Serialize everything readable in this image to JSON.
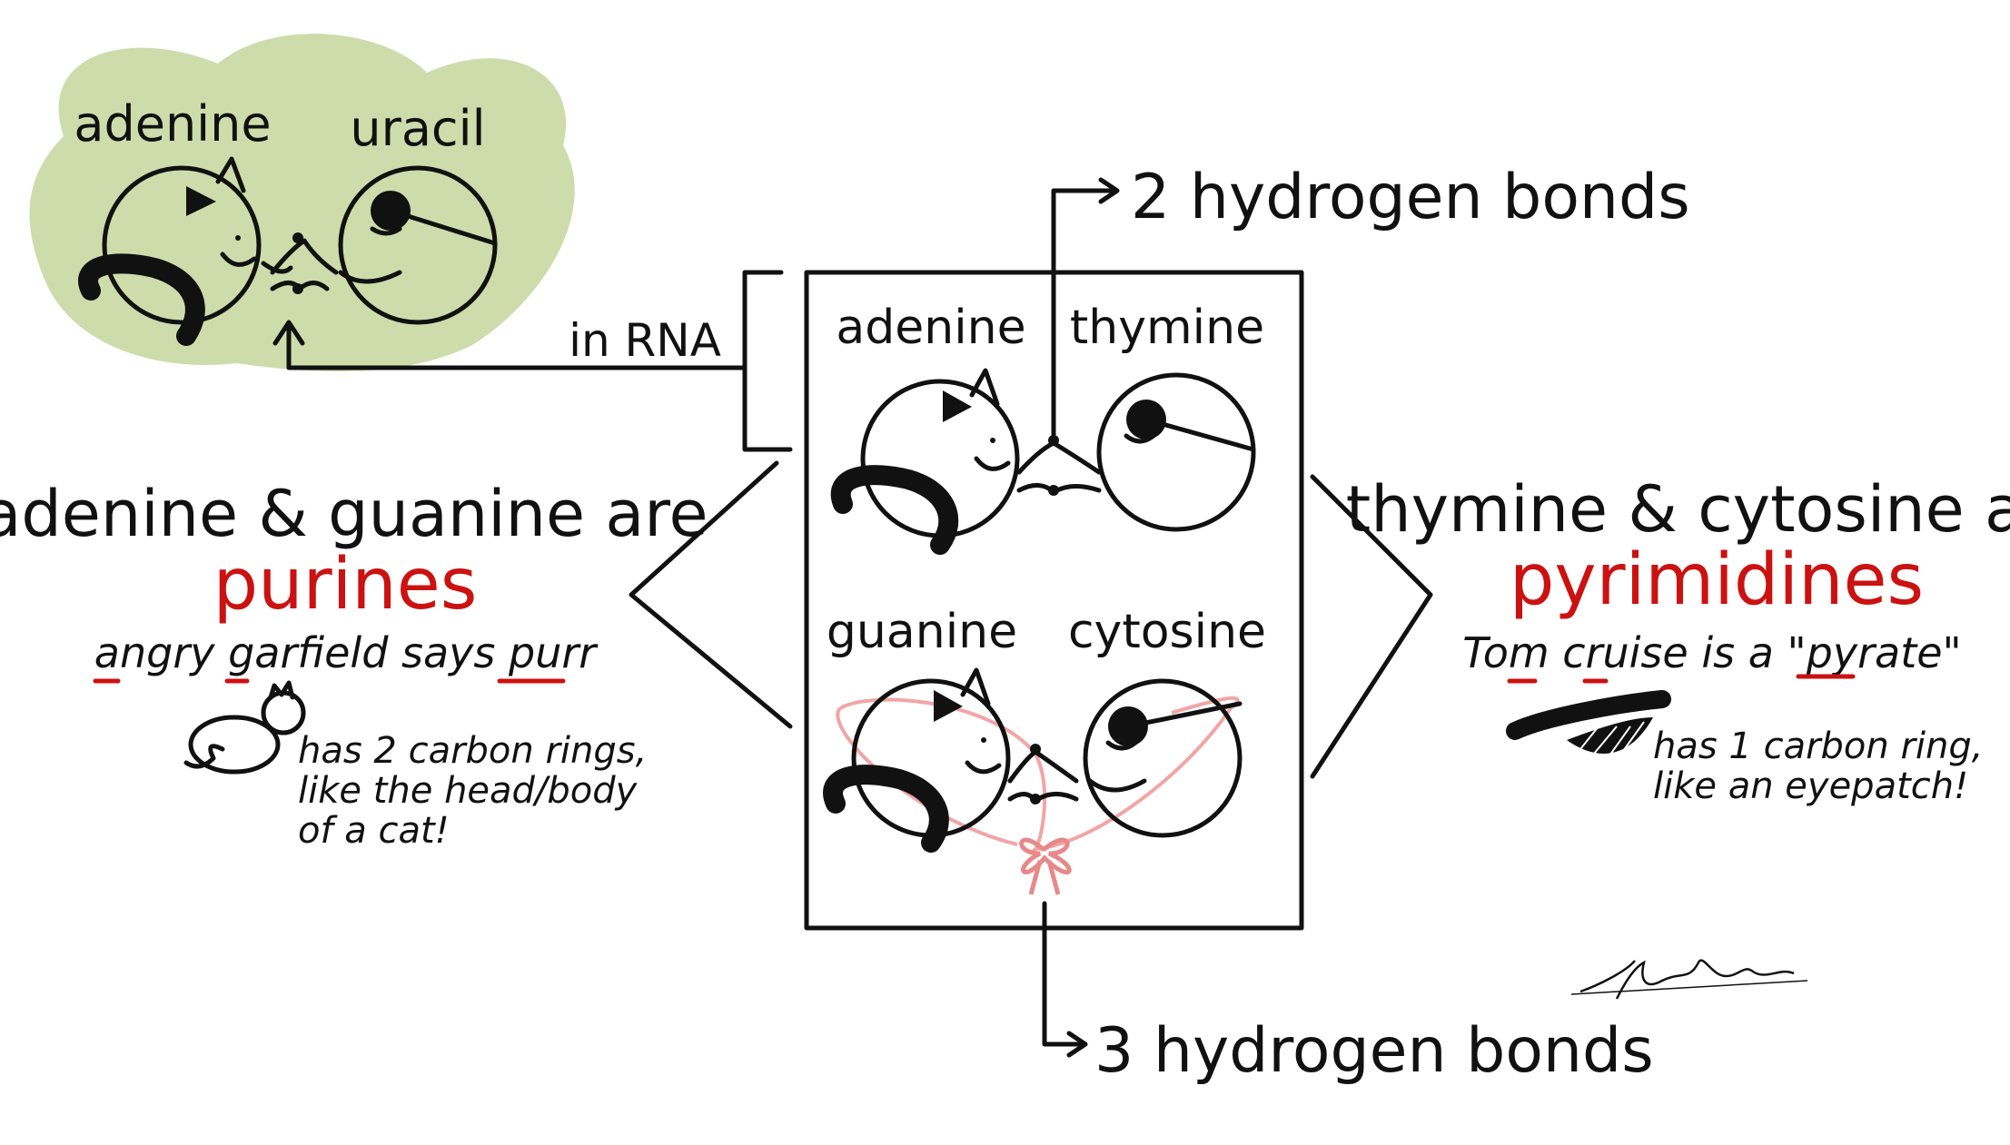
{
  "colors": {
    "ink": "#111111",
    "accent_red": "#cc1111",
    "rna_background": "#cddcaa",
    "ribbon_pink": "#f2a5a5",
    "bow_pink": "#e88888"
  },
  "rna_panel": {
    "base_left": "adenine",
    "base_right": "uracil",
    "connector_label": "in RNA"
  },
  "dna_box": {
    "top_left": "adenine",
    "top_right": "thymine",
    "bottom_left": "guanine",
    "bottom_right": "cytosine",
    "top_bond_label": "2 hydrogen bonds",
    "bottom_bond_label": "3 hydrogen bonds"
  },
  "purines": {
    "heading": "adenine & guanine are",
    "term": "purines",
    "mnemonic_parts": [
      "angry",
      " garfield",
      " says",
      " purr"
    ],
    "note_lines": [
      "has 2 carbon rings,",
      "like the head/body",
      "of a cat!"
    ]
  },
  "pyrimidines": {
    "heading": "thymine & cytosine are",
    "term": "pyrimidines",
    "mnemonic_parts": [
      "Tom",
      " cruise",
      " is a ",
      "\"pyrate\""
    ],
    "note_lines": [
      "has 1 carbon ring,",
      "like an eyepatch!"
    ]
  },
  "icons": [
    "cat-icon",
    "eyepatch-icon",
    "bow-icon",
    "signature-icon"
  ]
}
